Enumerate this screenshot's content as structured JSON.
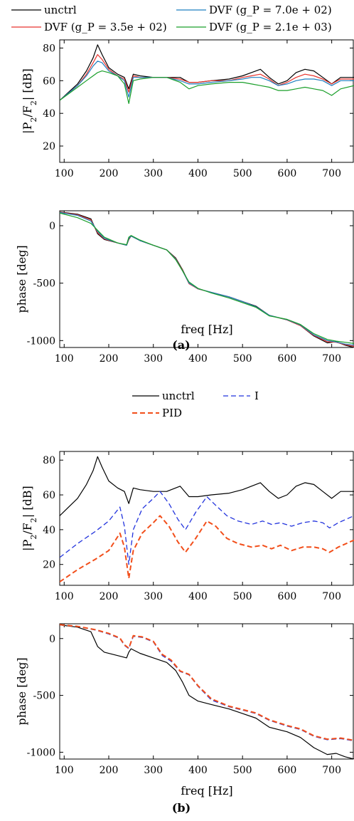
{
  "figure_labels": [
    "(a)",
    "(b)"
  ],
  "chart_data": [
    {
      "type": "line",
      "panel": "(a)",
      "ylabel": "|P_2/F_2| [dB]",
      "xlabel": "",
      "xlim": [
        90,
        750
      ],
      "ylim": [
        10,
        85
      ],
      "xticks": [
        100,
        200,
        300,
        400,
        500,
        600,
        700
      ],
      "yticks": [
        20,
        40,
        60,
        80
      ],
      "legend": {
        "placement": "top",
        "entries": [
          "unctrl",
          "DVF (g_P = 7.0e + 02)",
          "DVF (g_P = 3.5e + 02)",
          "DVF (g_P = 2.1e + 03)"
        ]
      },
      "series": [
        {
          "name": "unctrl",
          "color": "#000000",
          "dash": "solid",
          "x": [
            90,
            130,
            150,
            165,
            175,
            185,
            200,
            220,
            235,
            245,
            255,
            270,
            300,
            330,
            360,
            380,
            400,
            430,
            470,
            500,
            520,
            540,
            560,
            580,
            600,
            620,
            640,
            660,
            680,
            700,
            720,
            750
          ],
          "y": [
            48,
            58,
            66,
            74,
            82,
            76,
            68,
            64,
            62,
            55,
            64,
            63,
            62,
            62,
            62,
            59,
            59,
            60,
            61,
            63,
            65,
            67,
            62,
            58,
            60,
            65,
            67,
            66,
            62,
            58,
            62,
            62
          ]
        },
        {
          "name": "DVF (g_P = 3.5e + 02)",
          "color": "#e8332d",
          "dash": "solid",
          "x": [
            90,
            130,
            150,
            165,
            175,
            185,
            200,
            220,
            235,
            245,
            255,
            270,
            300,
            330,
            360,
            380,
            400,
            430,
            470,
            500,
            520,
            540,
            560,
            580,
            600,
            620,
            640,
            660,
            680,
            700,
            720,
            750
          ],
          "y": [
            48,
            57,
            64,
            71,
            76,
            73,
            67,
            63,
            61,
            53,
            63,
            62,
            62,
            62,
            61,
            59,
            59,
            60,
            60,
            62,
            63,
            64,
            61,
            57,
            59,
            62,
            64,
            63,
            61,
            58,
            61,
            61
          ]
        },
        {
          "name": "DVF (g_P = 7.0e + 02)",
          "color": "#1f7fc0",
          "dash": "solid",
          "x": [
            90,
            130,
            150,
            165,
            175,
            185,
            200,
            220,
            235,
            245,
            255,
            270,
            300,
            330,
            360,
            380,
            400,
            430,
            470,
            500,
            520,
            540,
            560,
            580,
            600,
            620,
            640,
            660,
            680,
            700,
            720,
            750
          ],
          "y": [
            48,
            57,
            63,
            69,
            72,
            71,
            66,
            63,
            60,
            50,
            62,
            62,
            62,
            62,
            60,
            58,
            58,
            59,
            60,
            61,
            62,
            62,
            60,
            57,
            58,
            60,
            61,
            61,
            60,
            57,
            60,
            60
          ]
        },
        {
          "name": "DVF (g_P = 2.1e + 03)",
          "color": "#1a9f2a",
          "dash": "solid",
          "x": [
            90,
            130,
            150,
            165,
            175,
            185,
            200,
            220,
            235,
            245,
            255,
            270,
            300,
            330,
            360,
            380,
            400,
            430,
            470,
            500,
            520,
            540,
            560,
            580,
            600,
            620,
            640,
            660,
            680,
            700,
            720,
            750
          ],
          "y": [
            48,
            56,
            60,
            63,
            65,
            66,
            65,
            63,
            58,
            46,
            60,
            61,
            62,
            62,
            59,
            55,
            57,
            58,
            59,
            59,
            58,
            57,
            56,
            54,
            54,
            55,
            56,
            55,
            54,
            51,
            55,
            57
          ]
        }
      ]
    },
    {
      "type": "line",
      "panel": "(a)",
      "ylabel": "phase [deg]",
      "xlabel": "freq [Hz]",
      "xlim": [
        90,
        750
      ],
      "ylim": [
        -1060,
        130
      ],
      "xticks": [
        100,
        200,
        300,
        400,
        500,
        600,
        700
      ],
      "yticks": [
        -1000,
        -500,
        0
      ],
      "series": [
        {
          "name": "unctrl",
          "color": "#000000",
          "dash": "solid",
          "x": [
            90,
            130,
            160,
            175,
            190,
            220,
            240,
            245,
            250,
            270,
            300,
            330,
            350,
            365,
            380,
            400,
            430,
            470,
            500,
            530,
            560,
            600,
            630,
            660,
            690,
            710,
            730,
            750
          ],
          "y": [
            120,
            100,
            60,
            -70,
            -120,
            -150,
            -170,
            -120,
            -90,
            -130,
            -170,
            -210,
            -280,
            -380,
            -500,
            -550,
            -580,
            -620,
            -660,
            -700,
            -780,
            -820,
            -870,
            -960,
            -1020,
            -1010,
            -1040,
            -1060
          ]
        },
        {
          "name": "DVF (g_P = 3.5e + 02)",
          "color": "#e8332d",
          "dash": "solid",
          "x": [
            90,
            130,
            160,
            175,
            190,
            220,
            240,
            245,
            250,
            270,
            300,
            330,
            350,
            365,
            380,
            400,
            430,
            470,
            500,
            530,
            560,
            600,
            630,
            660,
            690,
            710,
            730,
            750
          ],
          "y": [
            118,
            95,
            50,
            -60,
            -115,
            -150,
            -170,
            -115,
            -90,
            -130,
            -170,
            -210,
            -285,
            -385,
            -505,
            -550,
            -580,
            -620,
            -660,
            -705,
            -780,
            -820,
            -870,
            -955,
            -1010,
            -1015,
            -1035,
            -1050
          ]
        },
        {
          "name": "DVF (g_P = 7.0e + 02)",
          "color": "#1f7fc0",
          "dash": "solid",
          "x": [
            90,
            130,
            160,
            175,
            190,
            220,
            240,
            245,
            250,
            270,
            300,
            330,
            350,
            365,
            380,
            400,
            430,
            470,
            500,
            530,
            560,
            600,
            630,
            660,
            690,
            710,
            730,
            750
          ],
          "y": [
            115,
            90,
            40,
            -50,
            -110,
            -150,
            -170,
            -110,
            -90,
            -130,
            -170,
            -210,
            -290,
            -390,
            -500,
            -548,
            -580,
            -620,
            -660,
            -705,
            -780,
            -818,
            -865,
            -950,
            -1000,
            -1012,
            -1030,
            -1040
          ]
        },
        {
          "name": "DVF (g_P = 2.1e + 03)",
          "color": "#1a9f2a",
          "dash": "solid",
          "x": [
            90,
            130,
            160,
            175,
            190,
            220,
            240,
            245,
            250,
            270,
            300,
            330,
            350,
            365,
            380,
            400,
            430,
            470,
            500,
            530,
            560,
            600,
            630,
            660,
            690,
            710,
            730,
            750
          ],
          "y": [
            110,
            70,
            20,
            -40,
            -100,
            -150,
            -165,
            -100,
            -85,
            -125,
            -170,
            -210,
            -295,
            -390,
            -490,
            -545,
            -585,
            -630,
            -670,
            -710,
            -785,
            -815,
            -860,
            -940,
            -990,
            -1005,
            -1015,
            -1025
          ]
        }
      ]
    },
    {
      "type": "line",
      "panel": "(b)",
      "ylabel": "|P_2/F_2| [dB]",
      "xlabel": "",
      "xlim": [
        90,
        750
      ],
      "ylim": [
        8,
        85
      ],
      "xticks": [
        100,
        200,
        300,
        400,
        500,
        600,
        700
      ],
      "yticks": [
        20,
        40,
        60,
        80
      ],
      "legend": {
        "placement": "top",
        "entries": [
          "unctrl",
          "I",
          "PID"
        ]
      },
      "series": [
        {
          "name": "unctrl",
          "color": "#000000",
          "dash": "solid",
          "x": [
            90,
            130,
            150,
            165,
            175,
            185,
            200,
            220,
            235,
            245,
            255,
            270,
            300,
            330,
            360,
            380,
            400,
            430,
            470,
            500,
            520,
            540,
            560,
            580,
            600,
            620,
            640,
            660,
            680,
            700,
            720,
            750
          ],
          "y": [
            48,
            58,
            66,
            74,
            82,
            76,
            68,
            64,
            62,
            55,
            64,
            63,
            62,
            62,
            65,
            59,
            59,
            60,
            61,
            63,
            65,
            67,
            62,
            58,
            60,
            65,
            67,
            66,
            62,
            58,
            62,
            62
          ]
        },
        {
          "name": "I",
          "color": "#2233dd",
          "dash": "dashed",
          "x": [
            90,
            130,
            170,
            200,
            225,
            235,
            245,
            255,
            275,
            300,
            315,
            335,
            355,
            372,
            395,
            420,
            440,
            465,
            490,
            520,
            545,
            565,
            585,
            610,
            635,
            660,
            680,
            695,
            715,
            750
          ],
          "y": [
            24,
            32,
            39,
            45,
            53,
            42,
            20,
            40,
            52,
            58,
            62,
            55,
            46,
            40,
            50,
            59,
            54,
            48,
            45,
            43,
            45,
            43,
            44,
            42,
            44,
            45,
            44,
            41,
            44,
            48
          ]
        },
        {
          "name": "PID",
          "color": "#f24e1a",
          "dash": "dashed",
          "x": [
            90,
            130,
            170,
            200,
            225,
            235,
            245,
            255,
            275,
            300,
            315,
            335,
            355,
            372,
            395,
            420,
            440,
            465,
            490,
            520,
            545,
            565,
            585,
            610,
            635,
            660,
            680,
            695,
            715,
            750
          ],
          "y": [
            10,
            17,
            23,
            28,
            38,
            30,
            12,
            28,
            38,
            44,
            48,
            42,
            33,
            27,
            35,
            45,
            42,
            35,
            32,
            30,
            31,
            29,
            31,
            28,
            30,
            30,
            29,
            27,
            30,
            34
          ]
        }
      ]
    },
    {
      "type": "line",
      "panel": "(b)",
      "ylabel": "phase [deg]",
      "xlabel": "freq [Hz]",
      "xlim": [
        90,
        750
      ],
      "ylim": [
        -1060,
        130
      ],
      "xticks": [
        100,
        200,
        300,
        400,
        500,
        600,
        700
      ],
      "yticks": [
        -1000,
        -500,
        0
      ],
      "series": [
        {
          "name": "unctrl",
          "color": "#000000",
          "dash": "solid",
          "x": [
            90,
            130,
            160,
            175,
            190,
            220,
            240,
            245,
            250,
            270,
            300,
            330,
            350,
            365,
            380,
            400,
            430,
            470,
            500,
            530,
            560,
            600,
            630,
            660,
            690,
            710,
            730,
            750
          ],
          "y": [
            120,
            100,
            60,
            -70,
            -120,
            -150,
            -170,
            -120,
            -90,
            -130,
            -170,
            -210,
            -280,
            -380,
            -500,
            -550,
            -580,
            -620,
            -660,
            -700,
            -780,
            -820,
            -870,
            -960,
            -1020,
            -1010,
            -1040,
            -1060
          ]
        },
        {
          "name": "I",
          "color": "#2233dd",
          "dash": "dashed",
          "x": [
            90,
            130,
            170,
            200,
            225,
            235,
            245,
            255,
            275,
            300,
            320,
            340,
            360,
            380,
            400,
            430,
            470,
            500,
            530,
            560,
            600,
            630,
            660,
            690,
            720,
            750
          ],
          "y": [
            120,
            105,
            75,
            40,
            0,
            -60,
            -90,
            20,
            10,
            -30,
            -150,
            -200,
            -290,
            -320,
            -420,
            -540,
            -600,
            -630,
            -660,
            -720,
            -770,
            -800,
            -860,
            -890,
            -880,
            -900
          ]
        },
        {
          "name": "PID",
          "color": "#f24e1a",
          "dash": "dashed",
          "x": [
            90,
            130,
            170,
            200,
            225,
            235,
            245,
            255,
            275,
            300,
            320,
            340,
            360,
            380,
            400,
            430,
            470,
            500,
            530,
            560,
            600,
            630,
            660,
            690,
            720,
            750
          ],
          "y": [
            122,
            107,
            78,
            45,
            5,
            -55,
            -85,
            25,
            15,
            -25,
            -140,
            -190,
            -285,
            -315,
            -415,
            -530,
            -595,
            -625,
            -655,
            -715,
            -765,
            -795,
            -855,
            -885,
            -875,
            -895
          ]
        }
      ]
    }
  ]
}
